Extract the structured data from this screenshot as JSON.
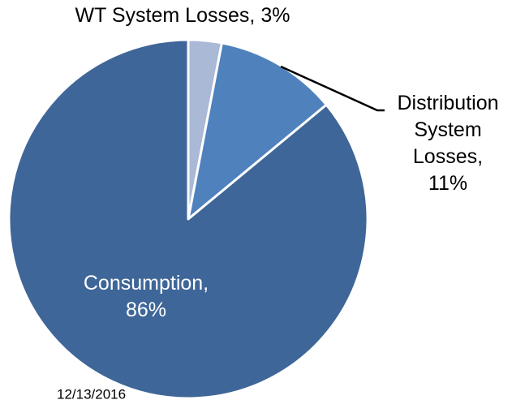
{
  "chart_data": {
    "type": "pie",
    "categories": [
      "WT System Losses,",
      "Distribution System Losses,",
      "Consumption,"
    ],
    "values": [
      3,
      11,
      86
    ],
    "value_labels": [
      "3%",
      "11%",
      "86%"
    ],
    "colors": [
      "#a9b9d6",
      "#4f81bd",
      "#3f6698"
    ],
    "start_angle": 90,
    "direction": "clockwise"
  },
  "footer_date": "12/13/2016"
}
